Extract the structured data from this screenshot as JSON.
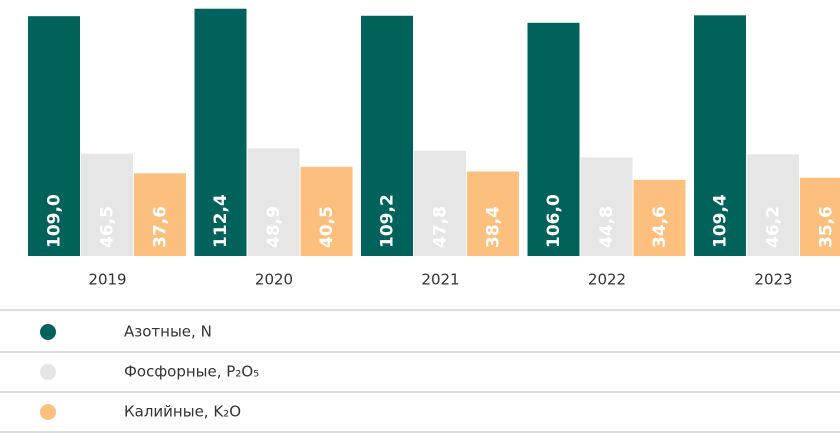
{
  "chart_data": {
    "type": "bar",
    "categories": [
      "2019",
      "2020",
      "2021",
      "2022",
      "2023"
    ],
    "series": [
      {
        "name": "Азотные, N",
        "color": "#00625a",
        "values": [
          109.0,
          112.4,
          109.2,
          106.0,
          109.4
        ],
        "value_labels": [
          "109,0",
          "112,4",
          "109,2",
          "106,0",
          "109,4"
        ]
      },
      {
        "name": "Фосфорные, P₂O₅",
        "color": "#e6e6e6",
        "values": [
          46.5,
          48.9,
          47.8,
          44.8,
          46.2
        ],
        "value_labels": [
          "46,5",
          "48,9",
          "47,8",
          "44,8",
          "46,2"
        ]
      },
      {
        "name": "Калийные, K₂O",
        "color": "#fdbf7d",
        "values": [
          37.6,
          40.5,
          38.4,
          34.6,
          35.6
        ],
        "value_labels": [
          "37,6",
          "40,5",
          "38,4",
          "34,6",
          "35,6"
        ]
      }
    ],
    "legend": "bottom"
  }
}
